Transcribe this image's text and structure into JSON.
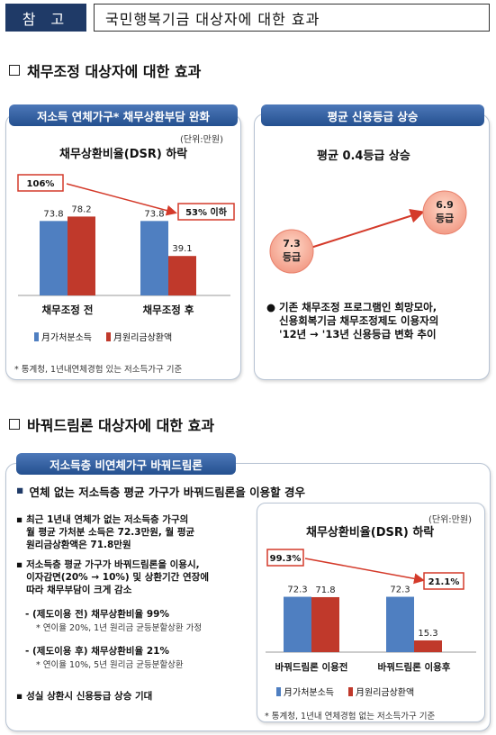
{
  "header": {
    "tag": "참 고",
    "title": "국민행복기금 대상자에 대한 효과"
  },
  "section1": {
    "heading": "채무조정 대상자에 대한 효과",
    "left_panel": {
      "pill": "저소득 연체가구* 채무상환부담 완화",
      "unit": "(단위:만원)",
      "chart_title": "채무상환비율(DSR) 하락",
      "callout_before": "106%",
      "callout_after": "53% 이하",
      "note": "* 통계청, 1년내연체경험 있는 저소득가구 기준"
    },
    "right_panel": {
      "pill": "평균 신용등급 상승",
      "chart_title": "평균 0.4등급 상승",
      "bubble_before": [
        "7.3",
        "등급"
      ],
      "bubble_after": [
        "6.9",
        "등급"
      ],
      "bullet_lines": [
        "기존 채무조정 프로그램인 희망모아,",
        "신용회복기금 채무조정제도 이용자의",
        "'12년 → '13년 신용등급 변화 추이"
      ]
    }
  },
  "section2": {
    "heading": "바꿔드림론 대상자에 대한 효과",
    "pill": "저소득층 비연체가구 바꿔드림론",
    "main_bullet": "연체 없는 저소득층 평균 가구가 바꿔드림론을 이용할 경우",
    "bullet1_lines": [
      "최근 1년내 연체가 없는 저소득층 가구의",
      "월 평균 가처분 소득은 72.3만원, 월 평균",
      "원리금상환액은 71.8만원"
    ],
    "bullet2_lines": [
      "저소득층 평균 가구가 바꿔드림론을 이용시,",
      "이자감면(20% → 10%) 및 상환기간 연장에",
      "따라 채무부담이 크게 감소"
    ],
    "item_before": "- (제도이용 전) 채무상환비율 99%",
    "item_before_note": "* 연이율 20%, 1년 원리금 균등분할상환 가정",
    "item_after": "- (제도이용 후) 채무상환비율 21%",
    "item_after_note": "* 연이율 10%, 5년 원리금 균등분할상환",
    "bullet3": "성실 상환시 신용등급 상승 기대",
    "chart_box": {
      "unit": "(단위:만원)",
      "chart_title": "채무상환비율(DSR) 하락",
      "callout_before": "99.3%",
      "callout_after": "21.1%",
      "note": "* 통계청, 1년내 연체경험 없는 저소득가구 기준"
    }
  },
  "colors": {
    "navy": "#1f3a67",
    "blue_bar": "#4f7fc1",
    "red_bar": "#c0392b",
    "callout_red": "#d43a2a"
  },
  "chart_data": [
    {
      "type": "bar",
      "title": "채무상환비율(DSR) 하락",
      "categories": [
        "채무조정 전",
        "채무조정 후"
      ],
      "series": [
        {
          "name": "月가처분소득",
          "values": [
            73.8,
            73.8
          ]
        },
        {
          "name": "月원리금상환액",
          "values": [
            78.2,
            39.1
          ]
        }
      ],
      "ylim": [
        0,
        100
      ],
      "grid": false,
      "legend": "bottom"
    },
    {
      "type": "bar",
      "title": "채무상환비율(DSR) 하락",
      "categories": [
        "바꿔드림론 이용전",
        "바꿔드림론 이용후"
      ],
      "series": [
        {
          "name": "月가처분소득",
          "values": [
            72.3,
            72.3
          ]
        },
        {
          "name": "月원리금상환액",
          "values": [
            71.8,
            15.3
          ]
        }
      ],
      "ylim": [
        0,
        100
      ],
      "grid": false,
      "legend": "bottom"
    }
  ]
}
